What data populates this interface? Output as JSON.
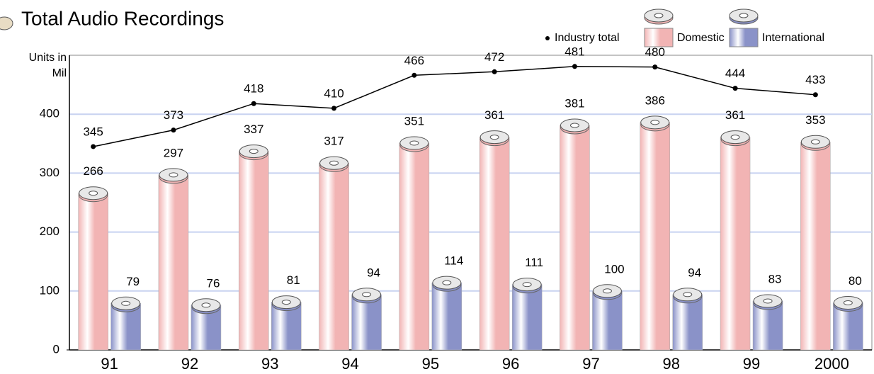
{
  "chart_data": {
    "type": "bar",
    "title": "Total Audio Recordings",
    "y_label": "Units in Mil",
    "categories": [
      "91",
      "92",
      "93",
      "94",
      "95",
      "96",
      "97",
      "98",
      "99",
      "2000"
    ],
    "series": [
      {
        "name": "Industry total",
        "type": "line",
        "color": "#000000",
        "values": [
          345,
          373,
          418,
          410,
          466,
          472,
          481,
          480,
          444,
          433
        ]
      },
      {
        "name": "Domestic",
        "color": "#f2b4b4",
        "values": [
          266,
          297,
          337,
          317,
          351,
          361,
          381,
          386,
          361,
          353
        ]
      },
      {
        "name": "International",
        "color": "#8a92c8",
        "values": [
          79,
          76,
          81,
          94,
          114,
          111,
          100,
          94,
          83,
          80
        ]
      }
    ],
    "ylim": [
      0,
      500
    ],
    "yticks": [
      0,
      100,
      200,
      300,
      400
    ],
    "grid": true
  }
}
